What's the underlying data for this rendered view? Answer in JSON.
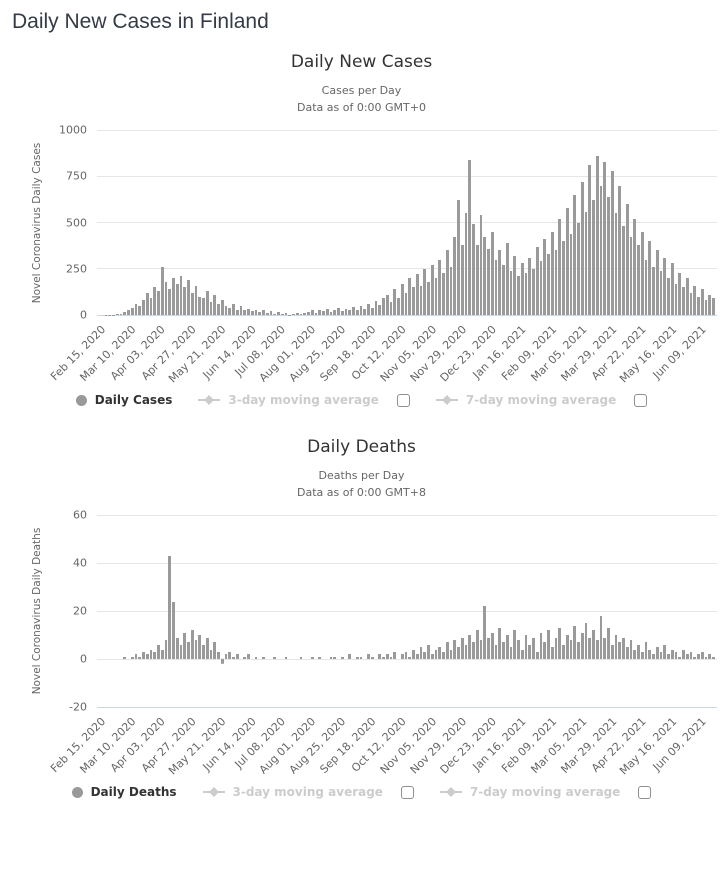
{
  "page": {
    "title": "Daily New Cases in Finland"
  },
  "colors": {
    "bar": "#9a9a9a",
    "grid": "#e6e6e6",
    "axis_line": "#ccd6eb",
    "label": "#666666",
    "title": "#333333",
    "legend_enabled": "#333333",
    "legend_disabled": "#cccccc"
  },
  "chart_data": [
    {
      "type": "bar",
      "title": "Daily New Cases",
      "subtitle_line1": "Cases per Day",
      "subtitle_line2": "Data as of 0:00 GMT+0",
      "ylabel": "Novel Coronavirus Daily Cases",
      "ylim": [
        0,
        1000
      ],
      "yticks": [
        0,
        250,
        500,
        750,
        1000
      ],
      "grid": true,
      "legend_position": "bottom",
      "xticklabels": [
        "Feb 15, 2020",
        "Mar 10, 2020",
        "Apr 03, 2020",
        "Apr 27, 2020",
        "May 21, 2020",
        "Jun 14, 2020",
        "Jul 08, 2020",
        "Aug 01, 2020",
        "Aug 25, 2020",
        "Sep 18, 2020",
        "Oct 12, 2020",
        "Nov 05, 2020",
        "Nov 29, 2020",
        "Dec 23, 2020",
        "Jan 16, 2021",
        "Feb 09, 2021",
        "Mar 05, 2021",
        "Mar 29, 2021",
        "Apr 22, 2021",
        "May 16, 2021",
        "Jun 09, 2021"
      ],
      "x_tick_every_n_bars": 8,
      "sampling_note": "values estimated from chart, one bar per ~3 days, Feb 15 2020 - Jun 21 2021",
      "series": [
        {
          "name": "Daily Cases",
          "values": [
            0,
            0,
            1,
            2,
            3,
            5,
            8,
            15,
            25,
            40,
            60,
            50,
            80,
            120,
            90,
            150,
            130,
            260,
            180,
            140,
            200,
            170,
            210,
            150,
            190,
            120,
            160,
            100,
            90,
            130,
            70,
            110,
            60,
            80,
            50,
            40,
            60,
            30,
            50,
            25,
            35,
            20,
            25,
            15,
            30,
            10,
            20,
            8,
            15,
            5,
            12,
            3,
            8,
            10,
            4,
            12,
            15,
            25,
            10,
            30,
            20,
            35,
            18,
            25,
            40,
            22,
            35,
            28,
            45,
            30,
            50,
            35,
            60,
            40,
            75,
            55,
            90,
            110,
            70,
            140,
            95,
            170,
            120,
            200,
            150,
            220,
            160,
            250,
            180,
            270,
            200,
            300,
            230,
            350,
            260,
            420,
            620,
            380,
            550,
            840,
            490,
            380,
            540,
            420,
            360,
            450,
            300,
            350,
            270,
            390,
            240,
            320,
            210,
            280,
            230,
            310,
            250,
            370,
            290,
            410,
            330,
            450,
            350,
            520,
            400,
            580,
            440,
            650,
            500,
            720,
            560,
            810,
            620,
            860,
            700,
            830,
            640,
            780,
            550,
            700,
            480,
            600,
            420,
            520,
            380,
            450,
            300,
            400,
            260,
            350,
            240,
            310,
            200,
            280,
            170,
            230,
            150,
            200,
            120,
            160,
            100,
            140,
            80,
            110,
            90
          ]
        }
      ],
      "legend": {
        "series_label": "Daily Cases",
        "ma3_label": "3-day moving average",
        "ma7_label": "7-day moving average",
        "ma3_checked": false,
        "ma7_checked": false
      }
    },
    {
      "type": "bar",
      "title": "Daily Deaths",
      "subtitle_line1": "Deaths per Day",
      "subtitle_line2": "Data as of 0:00 GMT+8",
      "ylabel": "Novel Coronavirus Daily Deaths",
      "ylim": [
        -20,
        60
      ],
      "yticks": [
        -20,
        0,
        20,
        40,
        60
      ],
      "grid": true,
      "legend_position": "bottom",
      "xticklabels": [
        "Feb 15, 2020",
        "Mar 10, 2020",
        "Apr 03, 2020",
        "Apr 27, 2020",
        "May 21, 2020",
        "Jun 14, 2020",
        "Jul 08, 2020",
        "Aug 01, 2020",
        "Aug 25, 2020",
        "Sep 18, 2020",
        "Oct 12, 2020",
        "Nov 05, 2020",
        "Nov 29, 2020",
        "Dec 23, 2020",
        "Jan 16, 2021",
        "Feb 09, 2021",
        "Mar 05, 2021",
        "Mar 29, 2021",
        "Apr 22, 2021",
        "May 16, 2021",
        "Jun 09, 2021"
      ],
      "x_tick_every_n_bars": 8,
      "sampling_note": "values estimated from chart, one bar per ~3 days, Feb 15 2020 - Jun 21 2021",
      "series": [
        {
          "name": "Daily Deaths",
          "values": [
            0,
            0,
            0,
            0,
            0,
            0,
            0,
            1,
            0,
            1,
            2,
            1,
            3,
            2,
            4,
            3,
            6,
            4,
            8,
            43,
            24,
            9,
            6,
            11,
            7,
            12,
            8,
            10,
            6,
            9,
            4,
            7,
            3,
            -2,
            2,
            3,
            1,
            2,
            0,
            1,
            2,
            0,
            1,
            0,
            1,
            0,
            0,
            1,
            0,
            0,
            1,
            0,
            0,
            0,
            1,
            0,
            0,
            1,
            0,
            1,
            0,
            0,
            1,
            1,
            0,
            1,
            0,
            2,
            0,
            1,
            1,
            0,
            2,
            1,
            0,
            2,
            1,
            2,
            1,
            3,
            0,
            2,
            3,
            1,
            4,
            2,
            5,
            3,
            6,
            2,
            4,
            5,
            3,
            7,
            4,
            8,
            5,
            9,
            6,
            10,
            7,
            12,
            8,
            22,
            9,
            11,
            6,
            13,
            7,
            10,
            5,
            12,
            8,
            4,
            10,
            6,
            9,
            3,
            11,
            7,
            12,
            5,
            9,
            13,
            6,
            10,
            8,
            14,
            7,
            11,
            15,
            9,
            12,
            8,
            18,
            9,
            13,
            6,
            10,
            7,
            9,
            5,
            8,
            4,
            6,
            3,
            7,
            4,
            2,
            5,
            3,
            6,
            2,
            4,
            3,
            1,
            4,
            2,
            3,
            1,
            2,
            3,
            1,
            2,
            1
          ]
        }
      ],
      "legend": {
        "series_label": "Daily Deaths",
        "ma3_label": "3-day moving average",
        "ma7_label": "7-day moving average",
        "ma3_checked": false,
        "ma7_checked": false
      }
    }
  ]
}
